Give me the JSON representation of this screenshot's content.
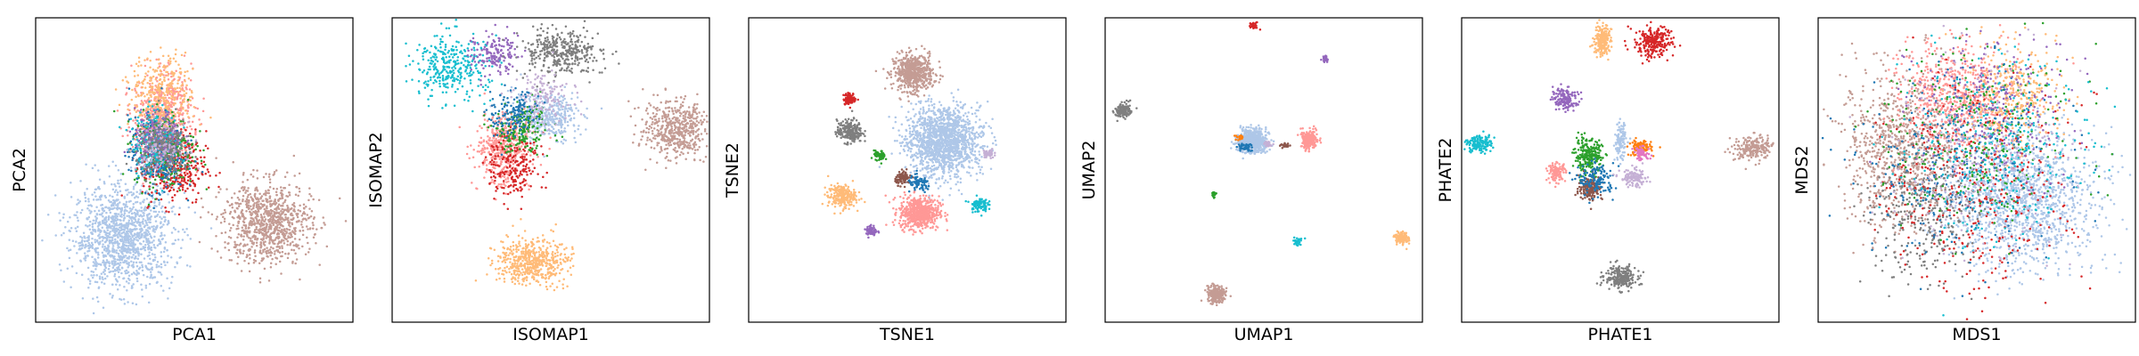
{
  "chart_data": [
    {
      "type": "scatter",
      "xlabel": "PCA1",
      "ylabel": "PCA2",
      "title": "",
      "xticks": [],
      "yticks": [],
      "clusters": [
        {
          "color": "#aec7e8",
          "cx": -3.6,
          "cy": -3.8,
          "sx": 1.25,
          "sy": 1.25,
          "n": 1300
        },
        {
          "color": "#c49c94",
          "cx": 3.7,
          "cy": -3.1,
          "sx": 1.1,
          "sy": 1.0,
          "n": 900
        },
        {
          "color": "#ff9896",
          "cx": -1.6,
          "cy": 2.0,
          "sx": 0.75,
          "sy": 1.15,
          "n": 650
        },
        {
          "color": "#ffbb78",
          "cx": -1.6,
          "cy": 3.3,
          "sx": 0.8,
          "sy": 0.9,
          "n": 320
        },
        {
          "color": "#d62728",
          "cx": -1.0,
          "cy": -0.4,
          "sx": 0.8,
          "sy": 0.9,
          "n": 350
        },
        {
          "color": "#2ca02c",
          "cx": -1.5,
          "cy": 0.5,
          "sx": 0.75,
          "sy": 0.9,
          "n": 300
        },
        {
          "color": "#1f77b4",
          "cx": -1.9,
          "cy": 0.3,
          "sx": 0.7,
          "sy": 0.9,
          "n": 280
        },
        {
          "color": "#17becf",
          "cx": -2.0,
          "cy": 0.9,
          "sx": 0.6,
          "sy": 0.8,
          "n": 220
        },
        {
          "color": "#9467bd",
          "cx": -1.8,
          "cy": 1.0,
          "sx": 0.6,
          "sy": 0.7,
          "n": 180
        },
        {
          "color": "#7f7f7f",
          "cx": -1.5,
          "cy": 0.6,
          "sx": 0.7,
          "sy": 0.7,
          "n": 240
        },
        {
          "color": "#c5b0d5",
          "cx": -1.7,
          "cy": 0.6,
          "sx": 0.6,
          "sy": 0.6,
          "n": 120
        }
      ],
      "xlim": [
        -8,
        8
      ],
      "ylim": [
        -8,
        7
      ]
    },
    {
      "type": "scatter",
      "xlabel": "ISOMAP1",
      "ylabel": "ISOMAP2",
      "title": "",
      "xticks": [],
      "yticks": [],
      "clusters": [
        {
          "color": "#17becf",
          "cx": -5.0,
          "cy": 4.6,
          "sx": 0.95,
          "sy": 0.8,
          "n": 330
        },
        {
          "color": "#9467bd",
          "cx": -2.9,
          "cy": 5.2,
          "sx": 0.6,
          "sy": 0.45,
          "n": 160
        },
        {
          "color": "#7f7f7f",
          "cx": 0.5,
          "cy": 5.3,
          "sx": 1.05,
          "sy": 0.5,
          "n": 380
        },
        {
          "color": "#aec7e8",
          "cx": -0.2,
          "cy": 2.1,
          "sx": 0.85,
          "sy": 0.6,
          "n": 380
        },
        {
          "color": "#ff9896",
          "cx": -2.4,
          "cy": 0.6,
          "sx": 0.7,
          "sy": 0.85,
          "n": 440
        },
        {
          "color": "#d62728",
          "cx": -1.9,
          "cy": -0.3,
          "sx": 0.6,
          "sy": 0.8,
          "n": 210
        },
        {
          "color": "#2ca02c",
          "cx": -1.5,
          "cy": 1.6,
          "sx": 0.7,
          "sy": 0.7,
          "n": 200
        },
        {
          "color": "#c5b0d5",
          "cx": -0.5,
          "cy": 3.0,
          "sx": 0.7,
          "sy": 0.6,
          "n": 150
        },
        {
          "color": "#1f77b4",
          "cx": -1.8,
          "cy": 2.3,
          "sx": 0.6,
          "sy": 0.6,
          "n": 150
        },
        {
          "color": "#ffbb78",
          "cx": -1.0,
          "cy": -5.0,
          "sx": 0.9,
          "sy": 0.55,
          "n": 520
        },
        {
          "color": "#c49c94",
          "cx": 6.4,
          "cy": 1.5,
          "sx": 0.85,
          "sy": 0.7,
          "n": 520
        }
      ],
      "xlim": [
        -8,
        8
      ],
      "ylim": [
        -8,
        7
      ]
    },
    {
      "type": "scatter",
      "xlabel": "TSNE1",
      "ylabel": "TSNE2",
      "title": "",
      "xticks": [],
      "yticks": [],
      "clusters": [
        {
          "color": "#aec7e8",
          "cx": 1.8,
          "cy": 0.9,
          "sx": 0.95,
          "sy": 0.85,
          "n": 1500
        },
        {
          "color": "#c49c94",
          "cx": 0.3,
          "cy": 4.3,
          "sx": 0.5,
          "sy": 0.45,
          "n": 600
        },
        {
          "color": "#ff9896",
          "cx": 0.6,
          "cy": -2.6,
          "sx": 0.5,
          "sy": 0.4,
          "n": 600
        },
        {
          "color": "#ffbb78",
          "cx": -3.3,
          "cy": -1.8,
          "sx": 0.35,
          "sy": 0.28,
          "n": 240
        },
        {
          "color": "#7f7f7f",
          "cx": -2.9,
          "cy": 1.4,
          "sx": 0.32,
          "sy": 0.28,
          "n": 240
        },
        {
          "color": "#d62728",
          "cx": -2.9,
          "cy": 3.0,
          "sx": 0.16,
          "sy": 0.14,
          "n": 90
        },
        {
          "color": "#17becf",
          "cx": 3.6,
          "cy": -2.2,
          "sx": 0.22,
          "sy": 0.18,
          "n": 90
        },
        {
          "color": "#9467bd",
          "cx": -1.8,
          "cy": -3.5,
          "sx": 0.14,
          "sy": 0.14,
          "n": 60
        },
        {
          "color": "#2ca02c",
          "cx": -1.4,
          "cy": 0.2,
          "sx": 0.14,
          "sy": 0.12,
          "n": 60
        },
        {
          "color": "#8c564b",
          "cx": -0.2,
          "cy": -0.9,
          "sx": 0.2,
          "sy": 0.16,
          "n": 90
        },
        {
          "color": "#1f77b4",
          "cx": 0.6,
          "cy": -1.2,
          "sx": 0.3,
          "sy": 0.2,
          "n": 80
        },
        {
          "color": "#c5b0d5",
          "cx": 4.1,
          "cy": 0.3,
          "sx": 0.14,
          "sy": 0.12,
          "n": 50
        }
      ],
      "xlim": [
        -8,
        8
      ],
      "ylim": [
        -8,
        7
      ]
    },
    {
      "type": "scatter",
      "xlabel": "UMAP1",
      "ylabel": "UMAP2",
      "title": "",
      "xticks": [],
      "yticks": [],
      "clusters": [
        {
          "color": "#aec7e8",
          "cx": -0.6,
          "cy": 0.9,
          "sx": 0.35,
          "sy": 0.28,
          "n": 700
        },
        {
          "color": "#ff9896",
          "cx": 2.3,
          "cy": 1.0,
          "sx": 0.22,
          "sy": 0.22,
          "n": 250
        },
        {
          "color": "#7f7f7f",
          "cx": -7.1,
          "cy": 2.4,
          "sx": 0.18,
          "sy": 0.18,
          "n": 150
        },
        {
          "color": "#c49c94",
          "cx": -2.4,
          "cy": -6.6,
          "sx": 0.22,
          "sy": 0.2,
          "n": 260
        },
        {
          "color": "#ffbb78",
          "cx": 7.0,
          "cy": -3.9,
          "sx": 0.18,
          "sy": 0.16,
          "n": 120
        },
        {
          "color": "#d62728",
          "cx": -0.5,
          "cy": 6.6,
          "sx": 0.1,
          "sy": 0.08,
          "n": 40
        },
        {
          "color": "#9467bd",
          "cx": 3.1,
          "cy": 5.0,
          "sx": 0.08,
          "sy": 0.08,
          "n": 25
        },
        {
          "color": "#17becf",
          "cx": 1.7,
          "cy": -4.0,
          "sx": 0.1,
          "sy": 0.1,
          "n": 35
        },
        {
          "color": "#2ca02c",
          "cx": -2.5,
          "cy": -1.7,
          "sx": 0.06,
          "sy": 0.1,
          "n": 15
        },
        {
          "color": "#8c564b",
          "cx": 1.1,
          "cy": 0.7,
          "sx": 0.14,
          "sy": 0.05,
          "n": 30
        },
        {
          "color": "#1f77b4",
          "cx": -0.9,
          "cy": 0.6,
          "sx": 0.2,
          "sy": 0.1,
          "n": 40
        },
        {
          "color": "#ff7f0e",
          "cx": -1.2,
          "cy": 1.1,
          "sx": 0.12,
          "sy": 0.06,
          "n": 20
        },
        {
          "color": "#c5b0d5",
          "cx": 0.2,
          "cy": 0.8,
          "sx": 0.1,
          "sy": 0.08,
          "n": 25
        }
      ],
      "xlim": [
        -8,
        8
      ],
      "ylim": [
        -8,
        7
      ]
    },
    {
      "type": "scatter",
      "xlabel": "PHATE1",
      "ylabel": "PHATE2",
      "title": "",
      "xticks": [],
      "yticks": [],
      "clusters": [
        {
          "color": "#ffbb78",
          "cx": -0.9,
          "cy": 5.9,
          "sx": 0.22,
          "sy": 0.4,
          "n": 220
        },
        {
          "color": "#d62728",
          "cx": 1.7,
          "cy": 5.8,
          "sx": 0.45,
          "sy": 0.38,
          "n": 260
        },
        {
          "color": "#9467bd",
          "cx": -2.8,
          "cy": 3.0,
          "sx": 0.3,
          "sy": 0.28,
          "n": 160
        },
        {
          "color": "#17becf",
          "cx": -7.1,
          "cy": 0.8,
          "sx": 0.32,
          "sy": 0.22,
          "n": 160
        },
        {
          "color": "#c49c94",
          "cx": 6.7,
          "cy": 0.6,
          "sx": 0.45,
          "sy": 0.28,
          "n": 220
        },
        {
          "color": "#7f7f7f",
          "cx": 0.0,
          "cy": -5.8,
          "sx": 0.4,
          "sy": 0.28,
          "n": 240
        },
        {
          "color": "#2ca02c",
          "cx": -1.6,
          "cy": 0.2,
          "sx": 0.35,
          "sy": 0.4,
          "n": 240
        },
        {
          "color": "#ff9896",
          "cx": -3.2,
          "cy": -0.6,
          "sx": 0.22,
          "sy": 0.22,
          "n": 120
        },
        {
          "color": "#8c564b",
          "cx": -1.5,
          "cy": -1.4,
          "sx": 0.3,
          "sy": 0.3,
          "n": 160
        },
        {
          "color": "#1f77b4",
          "cx": -1.2,
          "cy": -1.0,
          "sx": 0.45,
          "sy": 0.4,
          "n": 140
        },
        {
          "color": "#aec7e8",
          "cx": 0.0,
          "cy": 0.9,
          "sx": 0.14,
          "sy": 0.45,
          "n": 120
        },
        {
          "color": "#c5b0d5",
          "cx": 0.7,
          "cy": -0.9,
          "sx": 0.35,
          "sy": 0.22,
          "n": 120
        },
        {
          "color": "#ff7f0e",
          "cx": 1.0,
          "cy": 0.6,
          "sx": 0.28,
          "sy": 0.2,
          "n": 100
        },
        {
          "color": "#e377c2",
          "cx": 1.1,
          "cy": 0.3,
          "sx": 0.22,
          "sy": 0.16,
          "n": 60
        }
      ],
      "xlim": [
        -8,
        8
      ],
      "ylim": [
        -8,
        7
      ]
    },
    {
      "type": "scatter",
      "xlabel": "MDS1",
      "ylabel": "MDS2",
      "title": "",
      "xticks": [],
      "yticks": [],
      "clusters": [
        {
          "color": "#aec7e8",
          "cx": 2.3,
          "cy": -2.0,
          "sx": 1.8,
          "sy": 1.7,
          "n": 1400
        },
        {
          "color": "#c49c94",
          "cx": -4.0,
          "cy": 0.5,
          "sx": 1.4,
          "sy": 1.9,
          "n": 800
        },
        {
          "color": "#ff9896",
          "cx": -0.8,
          "cy": 3.1,
          "sx": 1.5,
          "sy": 1.3,
          "n": 650
        },
        {
          "color": "#ffbb78",
          "cx": 1.7,
          "cy": 3.2,
          "sx": 1.2,
          "sy": 1.2,
          "n": 350
        },
        {
          "color": "#7f7f7f",
          "cx": -2.6,
          "cy": -2.5,
          "sx": 1.4,
          "sy": 1.7,
          "n": 350
        },
        {
          "color": "#d62728",
          "cx": 0.0,
          "cy": -1.5,
          "sx": 2.4,
          "sy": 2.4,
          "n": 380
        },
        {
          "color": "#2ca02c",
          "cx": 0.0,
          "cy": 1.2,
          "sx": 2.4,
          "sy": 2.2,
          "n": 300
        },
        {
          "color": "#1f77b4",
          "cx": -1.0,
          "cy": 0.0,
          "sx": 2.4,
          "sy": 2.4,
          "n": 300
        },
        {
          "color": "#17becf",
          "cx": 1.0,
          "cy": 0.5,
          "sx": 2.4,
          "sy": 2.4,
          "n": 300
        },
        {
          "color": "#9467bd",
          "cx": 0.8,
          "cy": 3.0,
          "sx": 2.0,
          "sy": 1.8,
          "n": 240
        },
        {
          "color": "#c5b0d5",
          "cx": 0.0,
          "cy": 0.0,
          "sx": 2.3,
          "sy": 2.3,
          "n": 220
        }
      ],
      "xlim": [
        -8,
        8
      ],
      "ylim": [
        -8,
        7
      ]
    }
  ]
}
